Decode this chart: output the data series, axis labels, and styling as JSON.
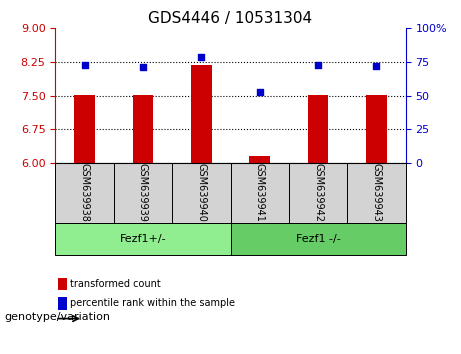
{
  "title": "GDS4446 / 10531304",
  "samples": [
    "GSM639938",
    "GSM639939",
    "GSM639940",
    "GSM639941",
    "GSM639942",
    "GSM639943"
  ],
  "bar_values": [
    7.52,
    7.52,
    8.18,
    6.15,
    7.52,
    7.52
  ],
  "percentile_values": [
    73,
    71,
    79,
    53,
    73,
    72
  ],
  "ylim_left": [
    6,
    9
  ],
  "ylim_right": [
    0,
    100
  ],
  "yticks_left": [
    6,
    6.75,
    7.5,
    8.25,
    9
  ],
  "yticks_right": [
    0,
    25,
    50,
    75,
    100
  ],
  "ytick_labels_right": [
    "0",
    "25",
    "50",
    "75",
    "100%"
  ],
  "hlines": [
    6.75,
    7.5,
    8.25
  ],
  "bar_color": "#CC0000",
  "dot_color": "#0000CC",
  "bar_bottom": 6,
  "groups": [
    {
      "label": "Fezf1+/-",
      "samples": [
        0,
        1,
        2
      ],
      "color": "#90EE90"
    },
    {
      "label": "Fezf1 -/-",
      "samples": [
        3,
        4,
        5
      ],
      "color": "#66CC66"
    }
  ],
  "legend_bar_label": "transformed count",
  "legend_dot_label": "percentile rank within the sample",
  "genotype_label": "genotype/variation",
  "background_color": "#ffffff",
  "plot_bg_color": "#ffffff",
  "gray_bg_color": "#D3D3D3"
}
